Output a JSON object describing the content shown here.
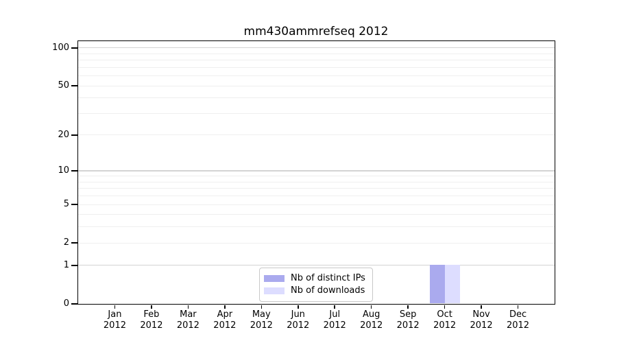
{
  "chart_data": {
    "type": "bar",
    "title": "mm430ammrefseq 2012",
    "x_categories": [
      "Jan",
      "Feb",
      "Mar",
      "Apr",
      "May",
      "Jun",
      "Jul",
      "Aug",
      "Sep",
      "Oct",
      "Nov",
      "Dec"
    ],
    "x_sublabel": "2012",
    "y_scale": "log1p",
    "y_ticks": [
      0,
      1,
      2,
      5,
      10,
      20,
      50,
      100
    ],
    "y_major_grid": [
      1,
      10,
      100
    ],
    "y_minor_grid": [
      2,
      3,
      4,
      5,
      6,
      7,
      8,
      9,
      20,
      30,
      40,
      50,
      60,
      70,
      80,
      90
    ],
    "ylim": [
      0,
      113
    ],
    "grid": "horizontal",
    "legend_position": "bottom-center",
    "series": [
      {
        "name": "Nb of distinct IPs",
        "color": "#aaaaee",
        "values": [
          0,
          0,
          0,
          0,
          0,
          0,
          0,
          0,
          0,
          1,
          0,
          0
        ]
      },
      {
        "name": "Nb of downloads",
        "color": "#ddddff",
        "values": [
          0,
          0,
          0,
          0,
          0,
          0,
          0,
          0,
          0,
          1,
          0,
          0
        ]
      }
    ],
    "colors": {
      "major_grid": "#d3d3d3",
      "minor_grid": "#efefef",
      "axis": "#000000",
      "background": "#ffffff",
      "legend_border": "#c8c8c8"
    }
  }
}
